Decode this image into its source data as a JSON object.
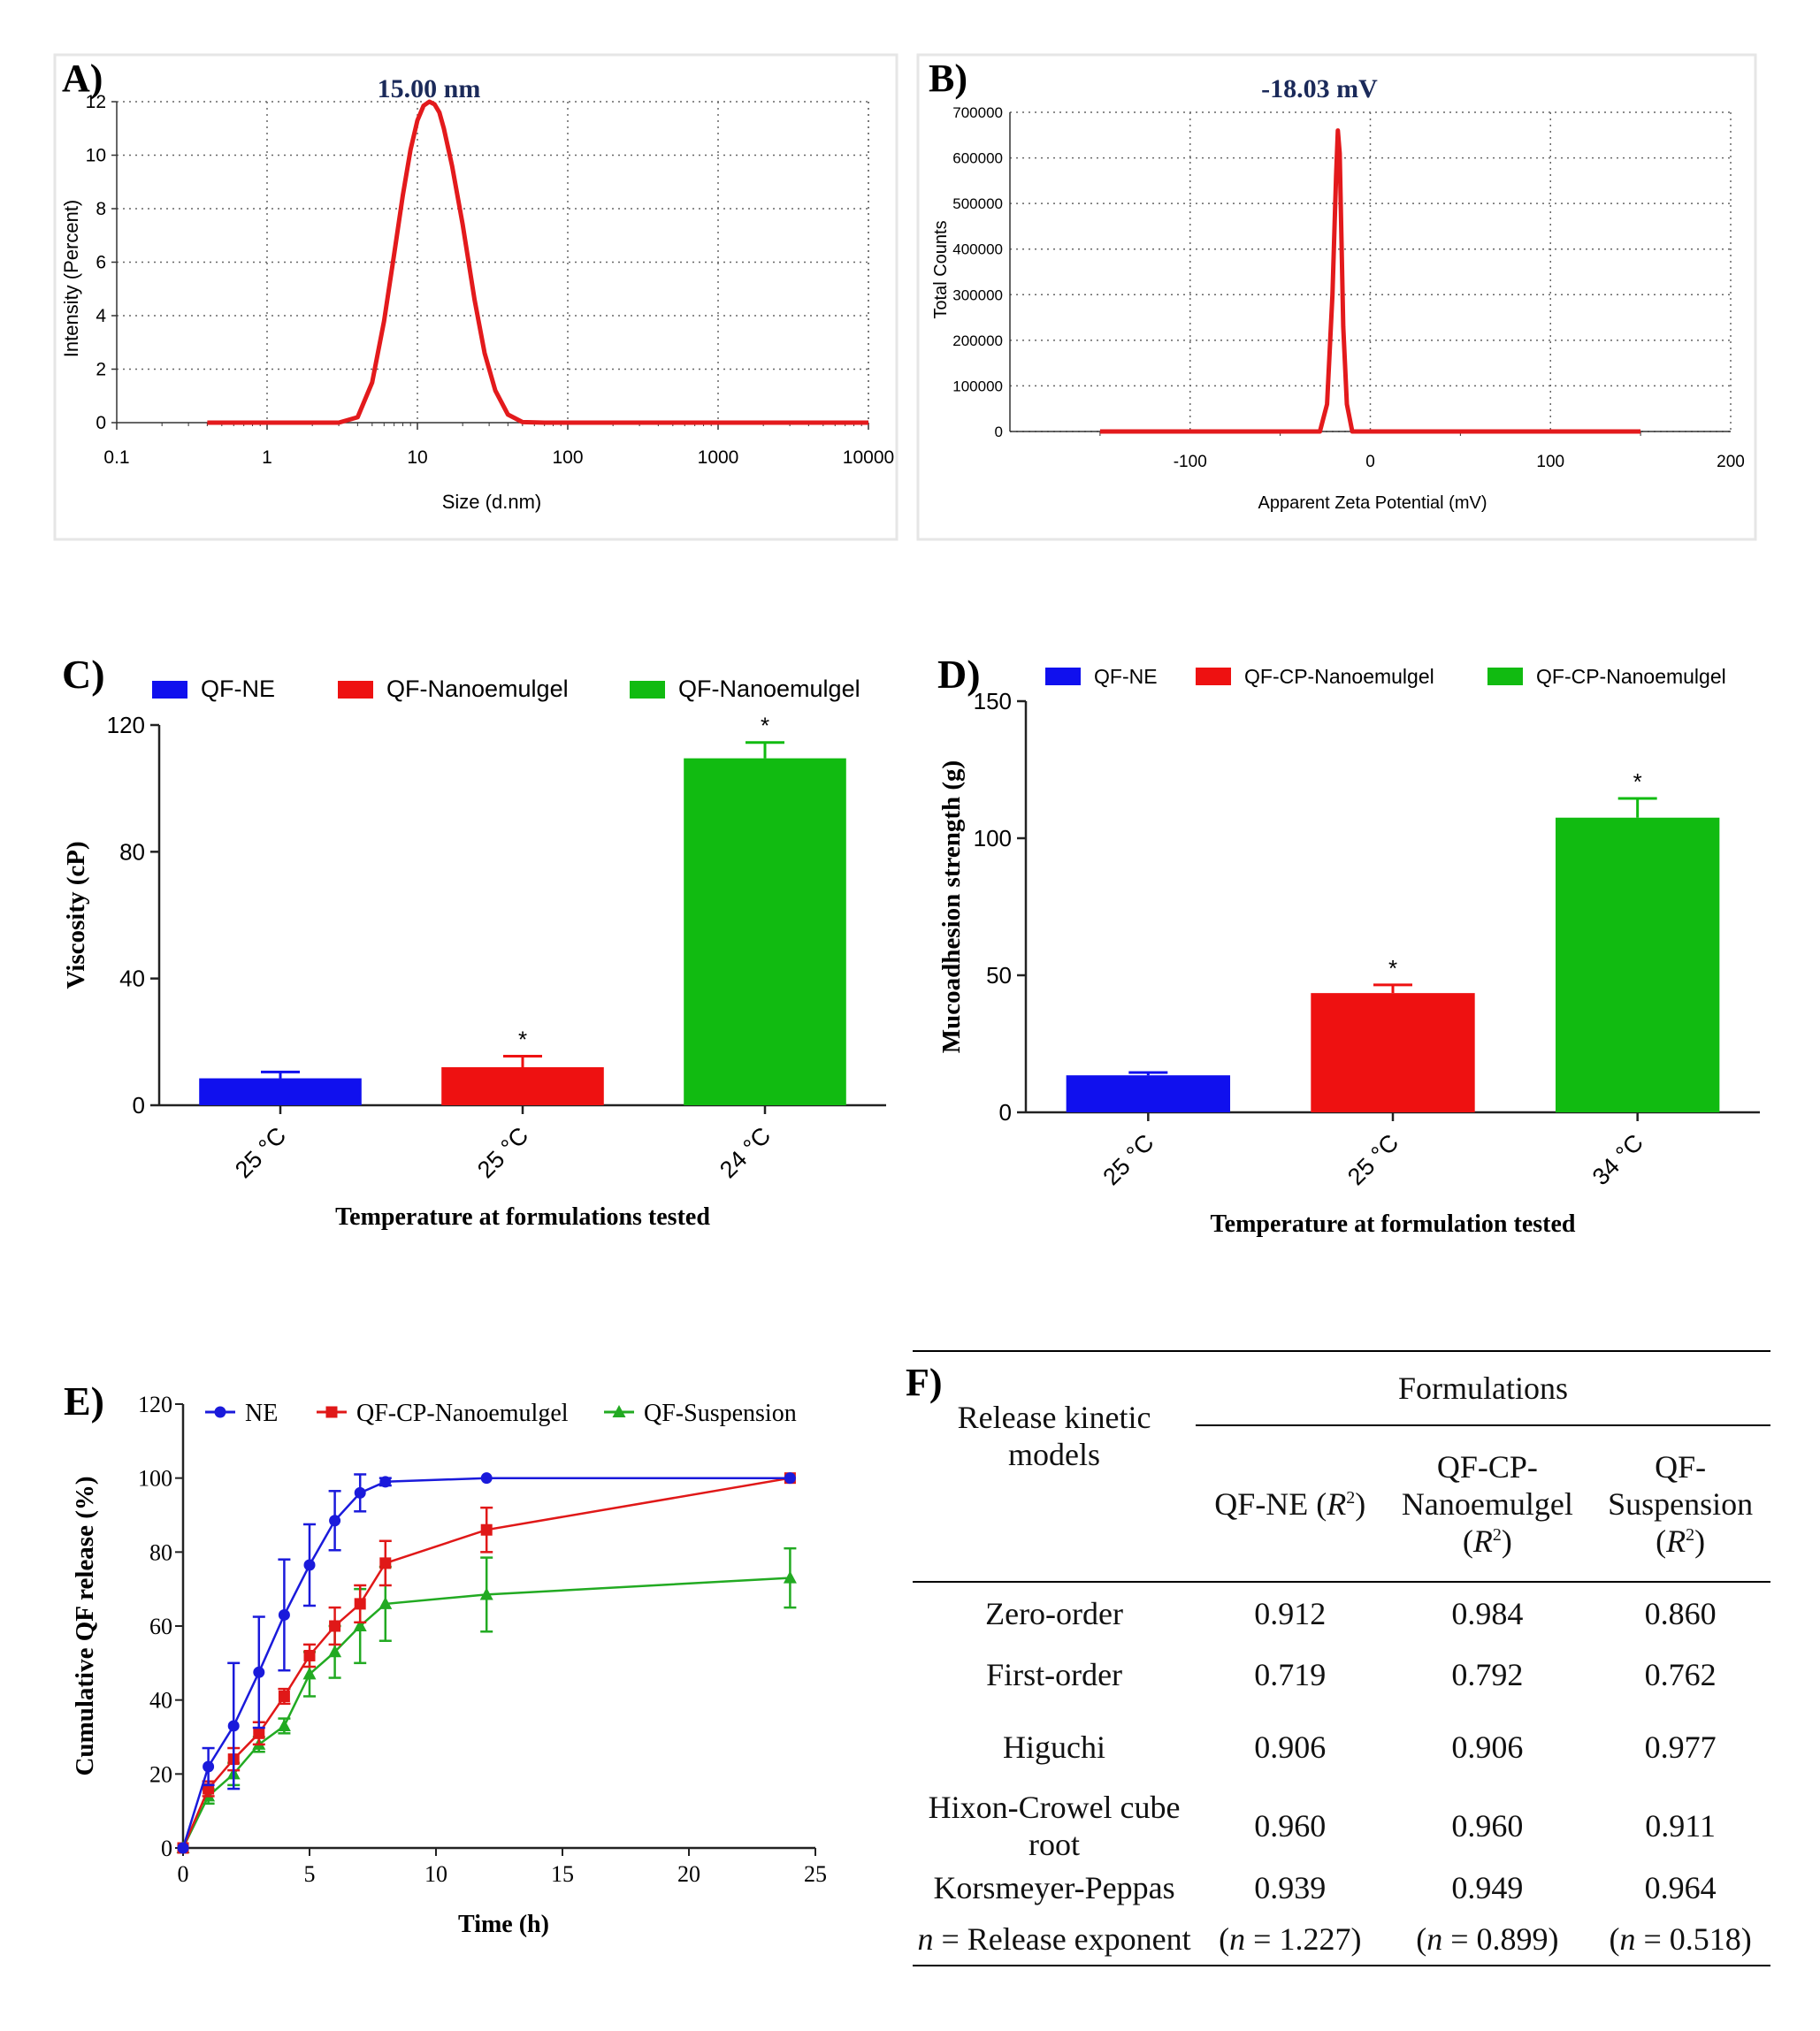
{
  "panels": {
    "a": {
      "label": "A)",
      "peak_label": "15.00 nm",
      "ylabel": "Intensity (Percent)",
      "xlabel": "Size (d.nm)",
      "x_ticks": [
        "0.1",
        "1",
        "10",
        "100",
        "1000",
        "10000"
      ],
      "y_ticks": [
        "0",
        "2",
        "4",
        "6",
        "8",
        "10",
        "12"
      ]
    },
    "b": {
      "label": "B)",
      "peak_label": "-18.03 mV",
      "ylabel": "Total Counts",
      "xlabel": "Apparent Zeta Potential (mV)",
      "x_ticks": [
        "-100",
        "0",
        "100",
        "200"
      ],
      "y_ticks": [
        "0",
        "100000",
        "200000",
        "300000",
        "400000",
        "500000",
        "600000",
        "700000"
      ]
    },
    "c": {
      "label": "C)"
    },
    "d": {
      "label": "D)"
    },
    "e": {
      "label": "E)"
    },
    "f": {
      "label": "F)"
    }
  },
  "chart_data": [
    {
      "panel": "A",
      "type": "line",
      "title": "15.00 nm",
      "xlabel": "Size (d.nm)",
      "ylabel": "Intensity (Percent)",
      "x_scale": "log",
      "xlim": [
        0.1,
        10000
      ],
      "ylim": [
        0,
        12
      ],
      "grid": true,
      "series": [
        {
          "color": "#e31a1c",
          "x": [
            0.4,
            3.0,
            4.0,
            5.0,
            6.0,
            7.0,
            8.0,
            9.0,
            10.0,
            11.0,
            12.0,
            13.0,
            14.0,
            15.0,
            17.0,
            20.0,
            24.0,
            28.0,
            33.0,
            40.0,
            50.0,
            70.0,
            10000
          ],
          "y": [
            0,
            0,
            0.2,
            1.5,
            3.8,
            6.3,
            8.5,
            10.2,
            11.3,
            11.85,
            12.0,
            11.9,
            11.6,
            11.0,
            9.6,
            7.4,
            4.6,
            2.6,
            1.2,
            0.3,
            0.02,
            0,
            0
          ]
        }
      ]
    },
    {
      "panel": "B",
      "type": "line",
      "title": "-18.03 mV",
      "xlabel": "Apparent Zeta Potential (mV)",
      "ylabel": "Total Counts",
      "xlim": [
        -200,
        200
      ],
      "ylim": [
        0,
        700000
      ],
      "grid": true,
      "series": [
        {
          "color": "#e31a1c",
          "x": [
            -150,
            -28,
            -24,
            -21,
            -19,
            -18,
            -17,
            -16,
            -15,
            -13,
            -10,
            150
          ],
          "y": [
            0,
            0,
            60000,
            300000,
            560000,
            660000,
            610000,
            420000,
            230000,
            60000,
            0,
            0
          ]
        }
      ]
    },
    {
      "panel": "C",
      "type": "bar",
      "xlabel": "Temperature at formulations tested",
      "ylabel": "Viscosity (cP)",
      "ylim": [
        0,
        120
      ],
      "y_ticks": [
        0,
        40,
        80,
        120
      ],
      "categories": [
        "25 °C",
        "25 °C",
        "24 °C"
      ],
      "series": [
        {
          "name": "QF-NE",
          "color": "#1010ee",
          "values": [
            8.5,
            null,
            null
          ],
          "errors": [
            2,
            null,
            null
          ],
          "marks": [
            "",
            "",
            ""
          ]
        },
        {
          "name": "QF-Nanoemulgel",
          "color": "#ee1111",
          "values": [
            null,
            12,
            null
          ],
          "errors": [
            null,
            3.5,
            null
          ],
          "marks": [
            "",
            "*",
            ""
          ]
        },
        {
          "name": "QF-Nanoemulgel",
          "color": "#11bb11",
          "values": [
            null,
            null,
            109.5
          ],
          "errors": [
            null,
            null,
            5
          ],
          "marks": [
            "",
            "",
            "*"
          ]
        }
      ],
      "legend": "top"
    },
    {
      "panel": "D",
      "type": "bar",
      "xlabel": "Temperature at formulation tested",
      "ylabel": "Mucoadhesion strength (g)",
      "ylim": [
        0,
        150
      ],
      "y_ticks": [
        0,
        50,
        100,
        150
      ],
      "categories": [
        "25 °C",
        "25 °C",
        "34 °C"
      ],
      "series": [
        {
          "name": "QF-NE",
          "color": "#1010ee",
          "values": [
            13.5,
            null,
            null
          ],
          "errors": [
            1,
            null,
            null
          ],
          "marks": [
            "",
            "",
            ""
          ]
        },
        {
          "name": "QF-CP-Nanoemulgel",
          "color": "#ee1111",
          "values": [
            null,
            43.5,
            null
          ],
          "errors": [
            null,
            3,
            null
          ],
          "marks": [
            "",
            "*",
            ""
          ]
        },
        {
          "name": "QF-CP-Nanoemulgel",
          "color": "#11bb11",
          "values": [
            null,
            null,
            107.5
          ],
          "errors": [
            null,
            null,
            7
          ],
          "marks": [
            "",
            "",
            "*"
          ]
        }
      ],
      "legend": "top"
    },
    {
      "panel": "E",
      "type": "line",
      "xlabel": "Time (h)",
      "ylabel": "Cumulative QF release (%)",
      "xlim": [
        0,
        25
      ],
      "ylim": [
        0,
        120
      ],
      "x_ticks": [
        0,
        5,
        10,
        15,
        20,
        25
      ],
      "y_ticks": [
        0,
        20,
        40,
        60,
        80,
        100,
        120
      ],
      "legend": "top",
      "series": [
        {
          "name": "NE",
          "color": "#1a1adb",
          "marker": "circle",
          "x": [
            0,
            1,
            2,
            3,
            4,
            5,
            6,
            7,
            8,
            12,
            24
          ],
          "y": [
            0,
            22,
            33,
            47.5,
            63,
            76.5,
            88.5,
            96,
            99,
            100,
            100
          ],
          "err": [
            0,
            5,
            17,
            15,
            15,
            11,
            8,
            5,
            1,
            0.5,
            0.5
          ]
        },
        {
          "name": "QF-CP-Nanoemulgel",
          "color": "#e01818",
          "marker": "square",
          "x": [
            0,
            1,
            2,
            3,
            4,
            5,
            6,
            7,
            8,
            12,
            24
          ],
          "y": [
            0,
            16,
            24,
            31,
            41,
            52,
            60,
            66,
            77,
            86,
            100
          ],
          "err": [
            0,
            2,
            3,
            3,
            2,
            3,
            5,
            5,
            6,
            6,
            0.5
          ]
        },
        {
          "name": "QF-Suspension",
          "color": "#22aa22",
          "marker": "triangle",
          "x": [
            0,
            1,
            2,
            3,
            4,
            5,
            6,
            7,
            8,
            12,
            24
          ],
          "y": [
            0,
            14,
            20,
            28,
            33,
            47,
            53,
            60,
            66,
            68.5,
            73
          ],
          "err": [
            0,
            2,
            3,
            2,
            2,
            6,
            7,
            10,
            10,
            10,
            8
          ]
        }
      ]
    },
    {
      "panel": "F",
      "type": "table",
      "header_group": "Formulations",
      "row_header": "Release kinetic models",
      "columns": [
        "QF-NE (R²)",
        "QF-CP-Nanoemulgel (R²)",
        "QF-Suspension (R²)"
      ],
      "rows": [
        {
          "model": "Zero-order",
          "values": [
            "0.912",
            "0.984",
            "0.860"
          ]
        },
        {
          "model": "First-order",
          "values": [
            "0.719",
            "0.792",
            "0.762"
          ]
        },
        {
          "model": "Higuchi",
          "values": [
            "0.906",
            "0.906",
            "0.977"
          ]
        },
        {
          "model": "Hixon-Crowel cube root",
          "values": [
            "0.960",
            "0.960",
            "0.911"
          ]
        },
        {
          "model": "Korsmeyer-Peppas",
          "values": [
            "0.939",
            "0.949",
            "0.964"
          ]
        },
        {
          "model": "n = Release exponent",
          "values": [
            "(n = 1.227)",
            "(n = 0.899)",
            "(n = 0.518)"
          ]
        }
      ]
    }
  ],
  "table_f": {
    "header_group": "Formulations",
    "row_header": "Release kinetic models",
    "col1": {
      "main": "QF-NE (",
      "sym": "R",
      "sup": "2",
      "tail": ")"
    },
    "col2": {
      "line1": "QF-CP-",
      "main": "Nanoemulgel (",
      "sym": "R",
      "sup": "2",
      "tail": ")"
    },
    "col3": {
      "line1": "QF-",
      "line2": "Suspension",
      "open": "(",
      "sym": "R",
      "sup": "2",
      "tail": ")"
    },
    "rows": [
      {
        "model": "Zero-order",
        "v1": "0.912",
        "v2": "0.984",
        "v3": "0.860"
      },
      {
        "model": "First-order",
        "v1": "0.719",
        "v2": "0.792",
        "v3": "0.762"
      },
      {
        "model": "Higuchi",
        "v1": "0.906",
        "v2": "0.906",
        "v3": "0.977"
      },
      {
        "model": "Hixon-Crowel cube root",
        "v1": "0.960",
        "v2": "0.960",
        "v3": "0.911"
      },
      {
        "model": "Korsmeyer-Peppas",
        "v1": "0.939",
        "v2": "0.949",
        "v3": "0.964"
      }
    ],
    "exponent_row": {
      "sym": "n",
      "label": " = Release exponent",
      "e1": " = 1.227)",
      "e2": " = 0.899)",
      "e3": " = 0.518)"
    }
  }
}
